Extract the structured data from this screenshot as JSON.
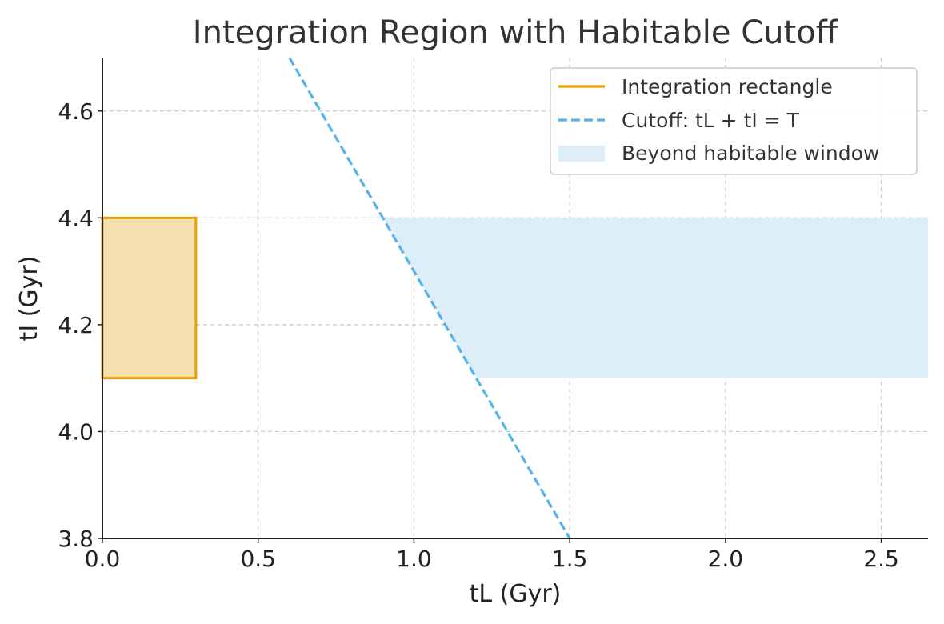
{
  "chart_data": {
    "type": "line",
    "title": "Integration Region with Habitable Cutoff",
    "xlabel": "tL (Gyr)",
    "ylabel": "tI (Gyr)",
    "xlim": [
      0.0,
      2.65
    ],
    "ylim": [
      3.8,
      4.7
    ],
    "xticks": [
      0.0,
      0.5,
      1.0,
      1.5,
      2.0,
      2.5
    ],
    "xtick_labels": [
      "0.0",
      "0.5",
      "1.0",
      "1.5",
      "2.0",
      "2.5"
    ],
    "yticks": [
      3.8,
      4.0,
      4.2,
      4.4,
      4.6
    ],
    "ytick_labels": [
      "3.8",
      "4.0",
      "4.2",
      "4.4",
      "4.6"
    ],
    "grid": true,
    "legend_position": "top-right",
    "series": [
      {
        "name": "Integration rectangle",
        "kind": "rectangle",
        "x": [
          0.0,
          0.3
        ],
        "y": [
          4.1,
          4.4
        ],
        "color": "#E69F00",
        "fill": "#F5E0B0"
      },
      {
        "name": "Cutoff: tL + tI = T",
        "kind": "line",
        "style": "dashed",
        "T": 5.3,
        "x": [
          0.6,
          1.5
        ],
        "y": [
          4.7,
          3.8
        ],
        "color": "#56B4E9"
      },
      {
        "name": "Beyond habitable window",
        "kind": "region",
        "y": [
          4.1,
          4.4
        ],
        "x_from_cutoff_to": 2.65,
        "color": "#DDEEF8"
      }
    ]
  }
}
